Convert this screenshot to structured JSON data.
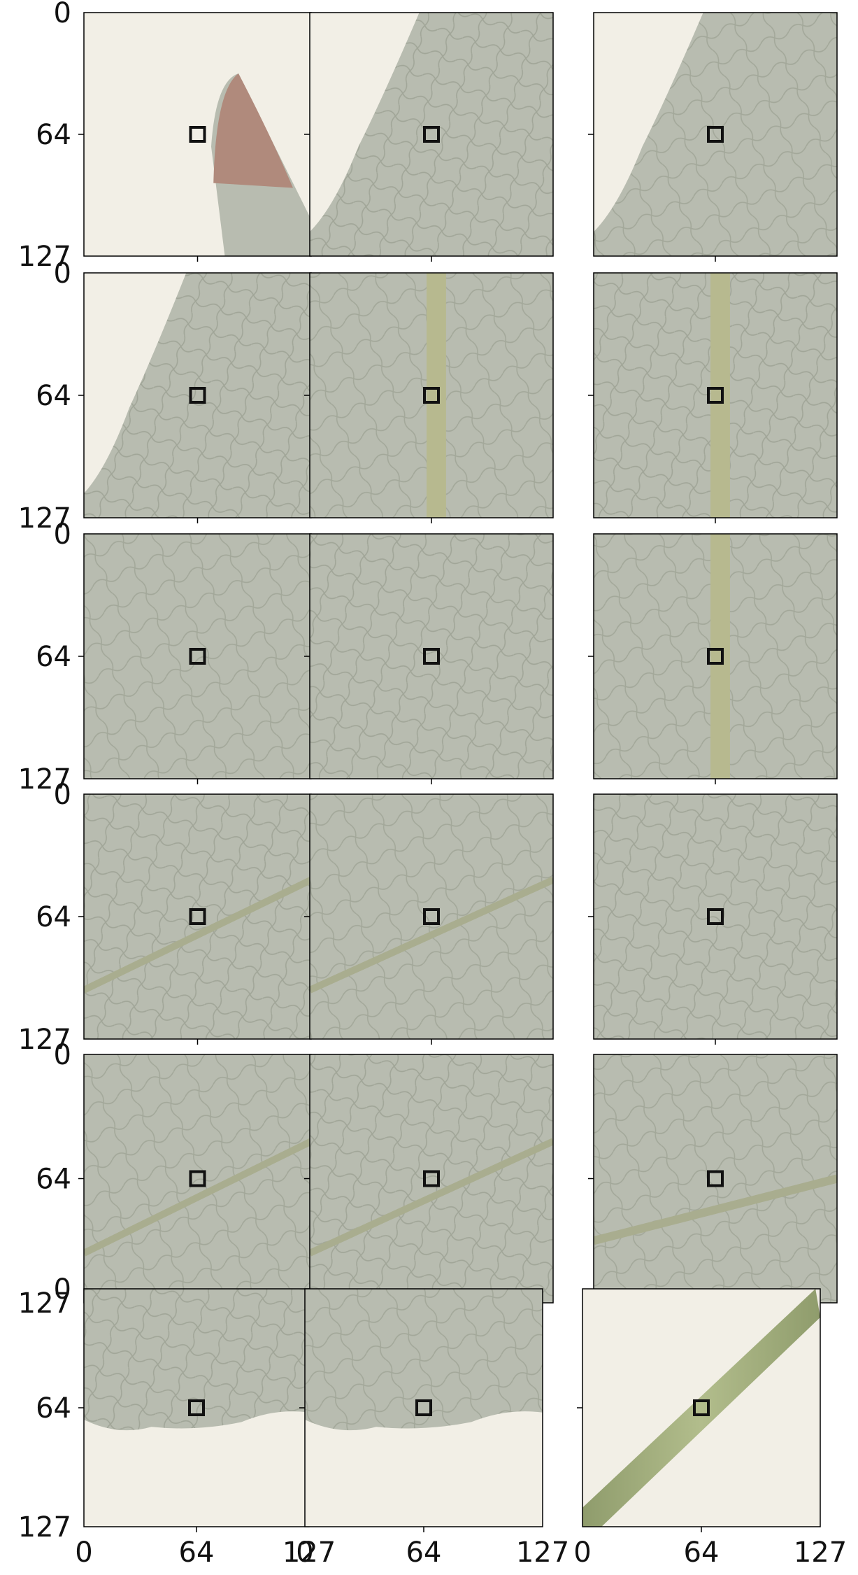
{
  "figure": {
    "rows": 6,
    "cols": 3,
    "y_tick_labels": [
      "0",
      "64",
      "127"
    ],
    "x_tick_labels": [
      "0",
      "64",
      "127"
    ],
    "marker": "square",
    "marker_pixel": [
      64,
      64
    ],
    "patch_size": 128
  },
  "colors": {
    "background": "#ffffff",
    "paper": "#f2efe6",
    "leaf": "#b8bcb0",
    "leaf_dark": "#9ea395",
    "vein": "#a9ad8f",
    "midrib": "#b7b98f",
    "stem": "#9fac7a",
    "necrosis": "#b08a7c",
    "marker": "#111111"
  },
  "panels": [
    {
      "name": "leaf-tip-necrotic",
      "kind": "tip"
    },
    {
      "name": "leaf-margin-top-right",
      "kind": "margin"
    },
    {
      "name": "leaf-margin-left-edge",
      "kind": "margin"
    },
    {
      "name": "leaf-margin-serrated",
      "kind": "margin"
    },
    {
      "name": "midrib-vertical-1",
      "kind": "midrib"
    },
    {
      "name": "midrib-vertical-2",
      "kind": "midrib"
    },
    {
      "name": "blade-venation-1",
      "kind": "blade"
    },
    {
      "name": "blade-venation-2",
      "kind": "blade"
    },
    {
      "name": "midrib-branching",
      "kind": "midrib"
    },
    {
      "name": "lateral-vein-diagonal-1",
      "kind": "blade"
    },
    {
      "name": "lateral-vein-diagonal-2",
      "kind": "blade"
    },
    {
      "name": "blade-venation-3",
      "kind": "blade"
    },
    {
      "name": "lateral-vein-diagonal-3",
      "kind": "blade"
    },
    {
      "name": "lateral-vein-diagonal-4",
      "kind": "blade"
    },
    {
      "name": "lateral-vein-horizontal",
      "kind": "blade"
    },
    {
      "name": "leaf-bottom-margin-1",
      "kind": "bottom-margin"
    },
    {
      "name": "leaf-bottom-margin-2",
      "kind": "bottom-margin"
    },
    {
      "name": "petiole-stem",
      "kind": "stem"
    }
  ]
}
